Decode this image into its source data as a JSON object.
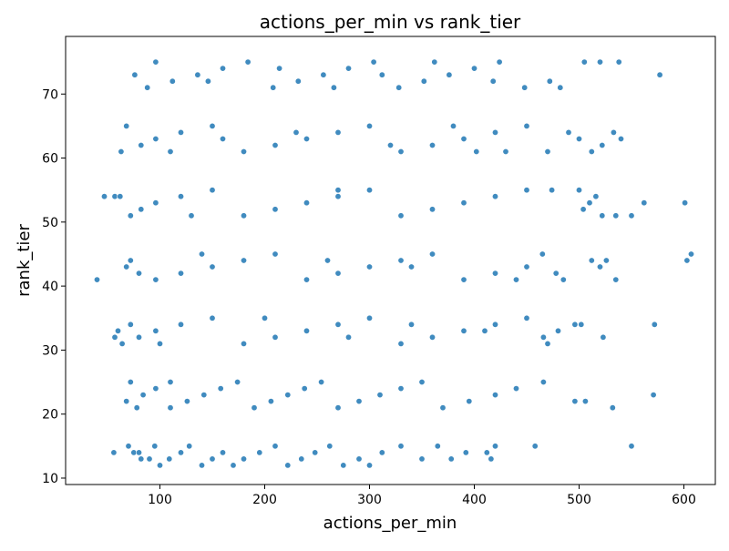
{
  "chart_data": {
    "type": "scatter",
    "title": "actions_per_min vs rank_tier",
    "xlabel": "actions_per_min",
    "ylabel": "rank_tier",
    "xlim": [
      10,
      630
    ],
    "ylim": [
      9,
      79
    ],
    "xticks": [
      100,
      200,
      300,
      400,
      500,
      600
    ],
    "yticks": [
      10,
      20,
      30,
      40,
      50,
      60,
      70
    ],
    "grid": false,
    "point_color": "#1f77b4",
    "point_edge_color": "#ffffff",
    "series": [
      {
        "points": [
          [
            88,
            71
          ],
          [
            112,
            72
          ],
          [
            136,
            73
          ],
          [
            160,
            74
          ],
          [
            184,
            75
          ],
          [
            208,
            71
          ],
          [
            232,
            72
          ],
          [
            256,
            73
          ],
          [
            280,
            74
          ],
          [
            304,
            75
          ],
          [
            328,
            71
          ],
          [
            352,
            72
          ],
          [
            376,
            73
          ],
          [
            400,
            74
          ],
          [
            424,
            75
          ],
          [
            448,
            71
          ],
          [
            472,
            72
          ],
          [
            482,
            71
          ],
          [
            505,
            75
          ],
          [
            520,
            75
          ],
          [
            538,
            75
          ],
          [
            577,
            73
          ],
          [
            76,
            73
          ],
          [
            96,
            75
          ],
          [
            146,
            72
          ],
          [
            214,
            74
          ],
          [
            266,
            71
          ],
          [
            312,
            73
          ],
          [
            362,
            75
          ],
          [
            418,
            72
          ],
          [
            63,
            61
          ],
          [
            68,
            65
          ],
          [
            82,
            62
          ],
          [
            96,
            63
          ],
          [
            120,
            64
          ],
          [
            150,
            65
          ],
          [
            180,
            61
          ],
          [
            210,
            62
          ],
          [
            240,
            63
          ],
          [
            270,
            64
          ],
          [
            300,
            65
          ],
          [
            330,
            61
          ],
          [
            360,
            62
          ],
          [
            390,
            63
          ],
          [
            420,
            64
          ],
          [
            450,
            65
          ],
          [
            470,
            61
          ],
          [
            490,
            64
          ],
          [
            500,
            63
          ],
          [
            512,
            61
          ],
          [
            522,
            62
          ],
          [
            533,
            64
          ],
          [
            540,
            63
          ],
          [
            430,
            61
          ],
          [
            380,
            65
          ],
          [
            110,
            61
          ],
          [
            160,
            63
          ],
          [
            230,
            64
          ],
          [
            320,
            62
          ],
          [
            402,
            61
          ],
          [
            47,
            54
          ],
          [
            57,
            54
          ],
          [
            62,
            54
          ],
          [
            72,
            51
          ],
          [
            82,
            52
          ],
          [
            96,
            53
          ],
          [
            120,
            54
          ],
          [
            150,
            55
          ],
          [
            180,
            51
          ],
          [
            210,
            52
          ],
          [
            240,
            53
          ],
          [
            270,
            54
          ],
          [
            300,
            55
          ],
          [
            330,
            51
          ],
          [
            360,
            52
          ],
          [
            390,
            53
          ],
          [
            420,
            54
          ],
          [
            450,
            55
          ],
          [
            474,
            55
          ],
          [
            500,
            55
          ],
          [
            504,
            52
          ],
          [
            510,
            53
          ],
          [
            516,
            54
          ],
          [
            522,
            51
          ],
          [
            535,
            51
          ],
          [
            550,
            51
          ],
          [
            562,
            53
          ],
          [
            601,
            53
          ],
          [
            130,
            51
          ],
          [
            270,
            55
          ],
          [
            40,
            41
          ],
          [
            68,
            43
          ],
          [
            72,
            44
          ],
          [
            80,
            42
          ],
          [
            96,
            41
          ],
          [
            120,
            42
          ],
          [
            150,
            43
          ],
          [
            180,
            44
          ],
          [
            210,
            45
          ],
          [
            240,
            41
          ],
          [
            270,
            42
          ],
          [
            300,
            43
          ],
          [
            330,
            44
          ],
          [
            360,
            45
          ],
          [
            390,
            41
          ],
          [
            420,
            42
          ],
          [
            450,
            43
          ],
          [
            465,
            45
          ],
          [
            478,
            42
          ],
          [
            485,
            41
          ],
          [
            512,
            44
          ],
          [
            520,
            43
          ],
          [
            526,
            44
          ],
          [
            535,
            41
          ],
          [
            603,
            44
          ],
          [
            607,
            45
          ],
          [
            140,
            45
          ],
          [
            260,
            44
          ],
          [
            340,
            43
          ],
          [
            440,
            41
          ],
          [
            57,
            32
          ],
          [
            60,
            33
          ],
          [
            64,
            31
          ],
          [
            72,
            34
          ],
          [
            80,
            32
          ],
          [
            96,
            33
          ],
          [
            120,
            34
          ],
          [
            150,
            35
          ],
          [
            180,
            31
          ],
          [
            210,
            32
          ],
          [
            240,
            33
          ],
          [
            270,
            34
          ],
          [
            300,
            35
          ],
          [
            330,
            31
          ],
          [
            360,
            32
          ],
          [
            390,
            33
          ],
          [
            420,
            34
          ],
          [
            450,
            35
          ],
          [
            466,
            32
          ],
          [
            470,
            31
          ],
          [
            480,
            33
          ],
          [
            496,
            34
          ],
          [
            502,
            34
          ],
          [
            523,
            32
          ],
          [
            572,
            34
          ],
          [
            100,
            31
          ],
          [
            200,
            35
          ],
          [
            280,
            32
          ],
          [
            340,
            34
          ],
          [
            410,
            33
          ],
          [
            68,
            22
          ],
          [
            72,
            25
          ],
          [
            78,
            21
          ],
          [
            84,
            23
          ],
          [
            96,
            24
          ],
          [
            110,
            25
          ],
          [
            126,
            22
          ],
          [
            142,
            23
          ],
          [
            158,
            24
          ],
          [
            174,
            25
          ],
          [
            190,
            21
          ],
          [
            206,
            22
          ],
          [
            222,
            23
          ],
          [
            238,
            24
          ],
          [
            254,
            25
          ],
          [
            270,
            21
          ],
          [
            290,
            22
          ],
          [
            310,
            23
          ],
          [
            330,
            24
          ],
          [
            350,
            25
          ],
          [
            370,
            21
          ],
          [
            395,
            22
          ],
          [
            420,
            23
          ],
          [
            440,
            24
          ],
          [
            466,
            25
          ],
          [
            496,
            22
          ],
          [
            506,
            22
          ],
          [
            532,
            21
          ],
          [
            571,
            23
          ],
          [
            110,
            21
          ],
          [
            56,
            14
          ],
          [
            70,
            15
          ],
          [
            75,
            14
          ],
          [
            80,
            14
          ],
          [
            82,
            13
          ],
          [
            90,
            13
          ],
          [
            95,
            15
          ],
          [
            100,
            12
          ],
          [
            109,
            13
          ],
          [
            120,
            14
          ],
          [
            128,
            15
          ],
          [
            140,
            12
          ],
          [
            150,
            13
          ],
          [
            160,
            14
          ],
          [
            170,
            12
          ],
          [
            180,
            13
          ],
          [
            195,
            14
          ],
          [
            210,
            15
          ],
          [
            222,
            12
          ],
          [
            235,
            13
          ],
          [
            248,
            14
          ],
          [
            262,
            15
          ],
          [
            275,
            12
          ],
          [
            290,
            13
          ],
          [
            300,
            12
          ],
          [
            312,
            14
          ],
          [
            330,
            15
          ],
          [
            350,
            13
          ],
          [
            365,
            15
          ],
          [
            378,
            13
          ],
          [
            392,
            14
          ],
          [
            412,
            14
          ],
          [
            416,
            13
          ],
          [
            420,
            15
          ],
          [
            458,
            15
          ],
          [
            550,
            15
          ]
        ]
      }
    ]
  }
}
